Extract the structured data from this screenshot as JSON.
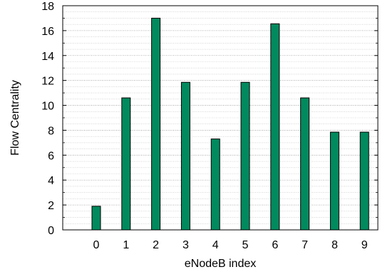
{
  "chart_data": {
    "type": "bar",
    "categories": [
      "0",
      "1",
      "2",
      "3",
      "4",
      "5",
      "6",
      "7",
      "8",
      "9"
    ],
    "values": [
      1.9,
      10.6,
      17.0,
      11.85,
      7.3,
      11.85,
      16.55,
      10.6,
      7.85,
      7.85
    ],
    "xlabel": "eNodeB index",
    "ylabel": "Flow Centrality",
    "ylim": [
      0,
      18
    ],
    "yticks": [
      0,
      2,
      4,
      6,
      8,
      10,
      12,
      14,
      16,
      18
    ],
    "grid": true,
    "bar_color": "#008a5e",
    "bar_edge_color": "#000000"
  }
}
